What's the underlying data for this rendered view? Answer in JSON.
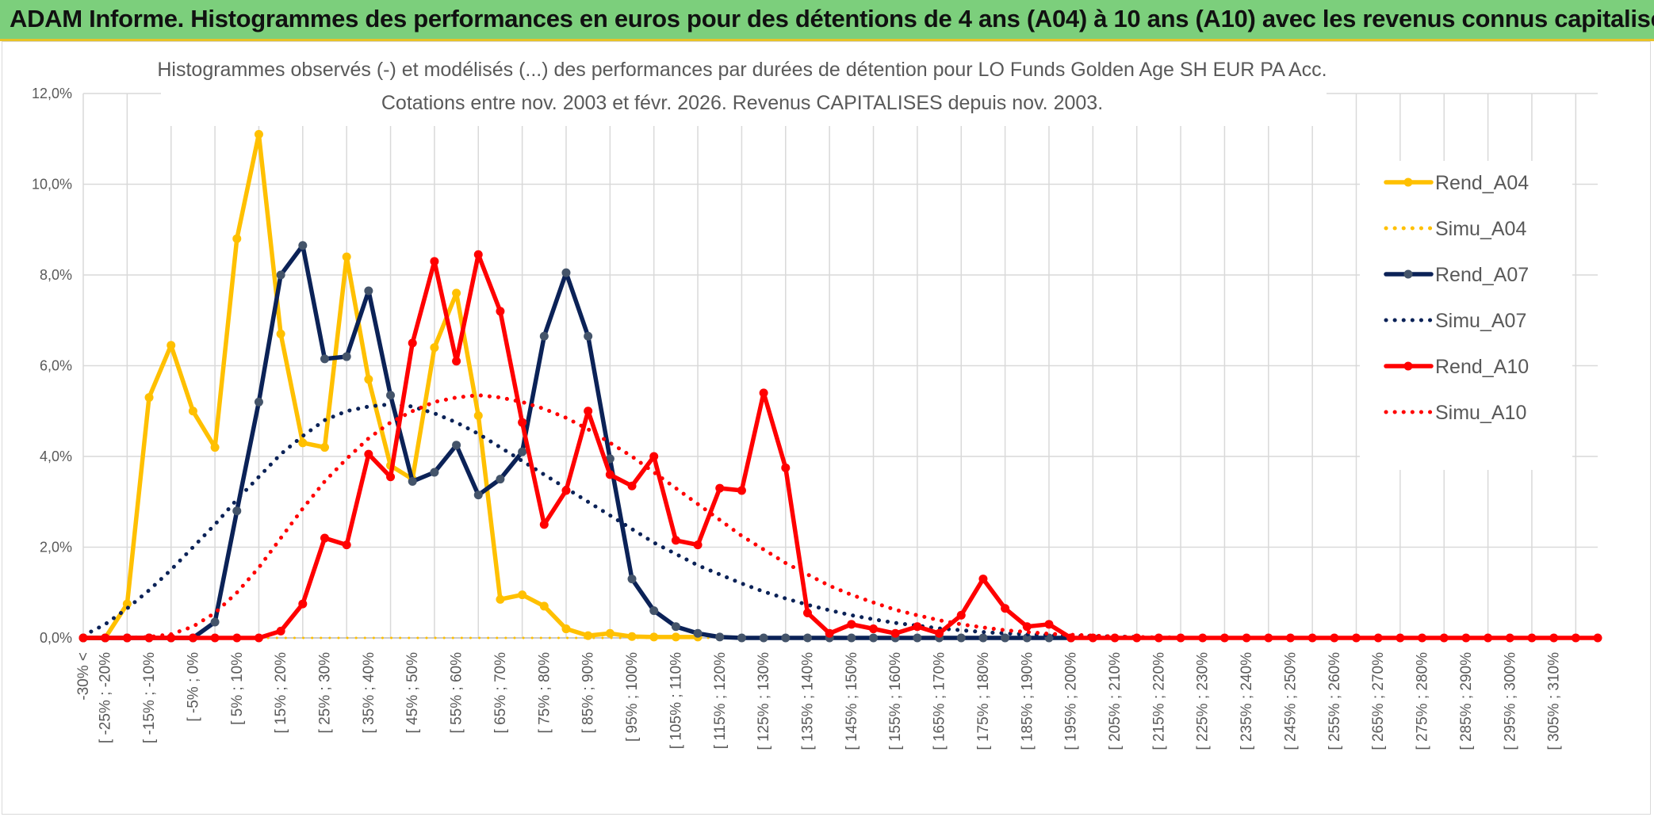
{
  "banner": {
    "title": "ADAM Informe. Histogrammes des performances en euros pour des détentions de 4 ans (A04) à 10 ans (A10) avec les revenus connus capitalisés"
  },
  "chart_data": {
    "type": "line",
    "title": "Histogrammes observés (-) et modélisés (...) des performances par durées de détention pour LO Funds Golden Age SH EUR PA Acc.",
    "subtitle": "Cotations entre nov. 2003 et févr. 2026. Revenus CAPITALISES depuis nov. 2003.",
    "xlabel": "",
    "ylabel": "",
    "ylim": [
      0,
      12
    ],
    "yticks": [
      "0,0%",
      "2,0%",
      "4,0%",
      "6,0%",
      "8,0%",
      "10,0%",
      "12,0%"
    ],
    "grid": true,
    "legend_position": "right",
    "categories": [
      "-30% <",
      "[ -25% ; -20%",
      "[ -15% ; -10%",
      "[ -5% ; 0%",
      "[ 5% ; 10%",
      "[ 15% ; 20%",
      "[ 25% ; 30%",
      "[ 35% ; 40%",
      "[ 45% ; 50%",
      "[ 55% ; 60%",
      "[ 65% ; 70%",
      "[ 75% ; 80%",
      "[ 85% ; 90%",
      "[ 95% ; 100%",
      "[ 105% ; 110%",
      "[ 115% ; 120%",
      "[ 125% ; 130%",
      "[ 135% ; 140%",
      "[ 145% ; 150%",
      "[ 155% ; 160%",
      "[ 165% ; 170%",
      "[ 175% ; 180%",
      "[ 185% ; 190%",
      "[ 195% ; 200%",
      "[ 205% ; 210%",
      "[ 215% ; 220%",
      "[ 225% ; 230%",
      "[ 235% ; 240%",
      "[ 245% ; 250%",
      "[ 255% ; 260%",
      "[ 265% ; 270%",
      "[ 275% ; 280%",
      "[ 285% ; 290%",
      "[ 295% ; 300%",
      "[ 305% ; 310%"
    ],
    "x_domain": [
      -30,
      315
    ],
    "series": [
      {
        "name": "Rend_A04",
        "style": "solid",
        "color": "#ffc000",
        "x": [
          -30,
          -25,
          -20,
          -15,
          -10,
          -5,
          0,
          5,
          10,
          15,
          20,
          25,
          30,
          35,
          40,
          45,
          50,
          55,
          60,
          65,
          70,
          75,
          80,
          85,
          90,
          95,
          100,
          105,
          110
        ],
        "values": [
          0,
          0,
          0.75,
          5.3,
          6.45,
          5.0,
          4.2,
          8.8,
          11.1,
          6.7,
          4.3,
          4.2,
          8.4,
          5.7,
          3.8,
          3.5,
          6.4,
          7.6,
          4.9,
          0.85,
          0.95,
          0.7,
          0.2,
          0.05,
          0.1,
          0.03,
          0.02,
          0.02,
          0.02
        ]
      },
      {
        "name": "Simu_A04",
        "style": "dotted",
        "color": "#ffc000",
        "x": [
          -30,
          -20,
          -10,
          0,
          10,
          20,
          30,
          40,
          50,
          60,
          70,
          80,
          90,
          100,
          110,
          120,
          130,
          140,
          150,
          160,
          170,
          180,
          190,
          200,
          210,
          220,
          230,
          240,
          250,
          260,
          270,
          280,
          290,
          300,
          310
        ],
        "values": [
          0,
          0,
          0,
          0,
          0,
          0,
          0,
          0,
          0,
          0,
          0,
          0,
          0,
          0,
          0,
          0,
          0,
          0,
          0,
          0,
          0,
          0,
          0,
          0,
          0,
          0,
          0,
          0,
          0,
          0,
          0,
          0,
          0,
          0,
          0
        ]
      },
      {
        "name": "Rend_A07",
        "style": "solid",
        "color": "#0b2257",
        "x": [
          -30,
          -25,
          -20,
          -15,
          -10,
          -5,
          0,
          5,
          10,
          15,
          20,
          25,
          30,
          35,
          40,
          45,
          50,
          55,
          60,
          65,
          70,
          75,
          80,
          85,
          90,
          95,
          100,
          105,
          110,
          115,
          120,
          125,
          130,
          135,
          140,
          145,
          150,
          155,
          160,
          165,
          170,
          175,
          180,
          185,
          190,
          195
        ],
        "values": [
          0,
          0,
          0,
          0,
          0,
          0,
          0.35,
          2.8,
          5.2,
          8.0,
          8.65,
          6.15,
          6.2,
          7.65,
          5.35,
          3.45,
          3.65,
          4.25,
          3.15,
          3.5,
          4.1,
          6.65,
          8.05,
          6.65,
          3.95,
          1.3,
          0.6,
          0.25,
          0.1,
          0.02,
          0,
          0,
          0,
          0,
          0,
          0,
          0,
          0,
          0,
          0,
          0,
          0,
          0,
          0,
          0,
          0
        ]
      },
      {
        "name": "Simu_A07",
        "style": "dotted",
        "color": "#0b2257",
        "x": [
          -30,
          -25,
          -20,
          -15,
          -10,
          -5,
          0,
          5,
          10,
          15,
          20,
          25,
          30,
          35,
          40,
          45,
          50,
          55,
          60,
          65,
          70,
          75,
          80,
          85,
          90,
          95,
          100,
          105,
          110,
          115,
          120,
          125,
          130,
          135,
          140,
          145,
          150,
          155,
          160,
          165,
          170,
          175,
          180,
          185,
          190,
          195,
          200,
          205,
          210
        ],
        "values": [
          0.05,
          0.3,
          0.65,
          1.05,
          1.5,
          2.0,
          2.5,
          3.05,
          3.55,
          4.05,
          4.45,
          4.8,
          5.0,
          5.1,
          5.15,
          5.1,
          4.95,
          4.75,
          4.5,
          4.2,
          3.9,
          3.6,
          3.3,
          3.0,
          2.7,
          2.4,
          2.1,
          1.85,
          1.6,
          1.4,
          1.2,
          1.02,
          0.87,
          0.73,
          0.61,
          0.5,
          0.41,
          0.33,
          0.27,
          0.21,
          0.17,
          0.13,
          0.1,
          0.08,
          0.06,
          0.05,
          0.04,
          0.03,
          0.02
        ]
      },
      {
        "name": "Rend_A10",
        "style": "solid",
        "color": "#ff0000",
        "x": [
          -30,
          -25,
          -20,
          -15,
          -10,
          -5,
          0,
          5,
          10,
          15,
          20,
          25,
          30,
          35,
          40,
          45,
          50,
          55,
          60,
          65,
          70,
          75,
          80,
          85,
          90,
          95,
          100,
          105,
          110,
          115,
          120,
          125,
          130,
          135,
          140,
          145,
          150,
          155,
          160,
          165,
          170,
          175,
          180,
          185,
          190,
          195,
          200,
          205,
          210,
          215,
          220,
          225,
          230,
          235,
          240,
          245,
          250,
          255,
          260,
          265,
          270,
          275,
          280,
          285,
          290,
          295,
          300,
          305,
          310,
          315
        ],
        "values": [
          0,
          0,
          0,
          0,
          0,
          0,
          0,
          0,
          0,
          0.15,
          0.75,
          2.2,
          2.05,
          4.05,
          3.55,
          6.5,
          8.3,
          6.1,
          8.45,
          7.2,
          4.75,
          2.5,
          3.25,
          5.0,
          3.6,
          3.35,
          4.0,
          2.15,
          2.05,
          3.3,
          3.25,
          5.4,
          3.75,
          0.55,
          0.1,
          0.3,
          0.2,
          0.1,
          0.25,
          0.1,
          0.5,
          1.3,
          0.65,
          0.25,
          0.3,
          0,
          0,
          0,
          0,
          0,
          0,
          0,
          0,
          0,
          0,
          0,
          0,
          0,
          0,
          0,
          0,
          0,
          0,
          0,
          0,
          0,
          0,
          0,
          0,
          0
        ]
      },
      {
        "name": "Simu_A10",
        "style": "dotted",
        "color": "#ff0000",
        "x": [
          -30,
          -25,
          -20,
          -15,
          -10,
          -5,
          0,
          5,
          10,
          15,
          20,
          25,
          30,
          35,
          40,
          45,
          50,
          55,
          60,
          65,
          70,
          75,
          80,
          85,
          90,
          95,
          100,
          105,
          110,
          115,
          120,
          125,
          130,
          135,
          140,
          145,
          150,
          155,
          160,
          165,
          170,
          175,
          180,
          185,
          190,
          195,
          200,
          205,
          210,
          215,
          220
        ],
        "values": [
          0,
          0,
          0,
          0.02,
          0.08,
          0.25,
          0.55,
          1.0,
          1.55,
          2.2,
          2.85,
          3.45,
          3.95,
          4.4,
          4.75,
          5.0,
          5.2,
          5.3,
          5.35,
          5.3,
          5.2,
          5.05,
          4.85,
          4.6,
          4.3,
          4.0,
          3.65,
          3.3,
          2.95,
          2.6,
          2.25,
          1.95,
          1.65,
          1.4,
          1.15,
          0.95,
          0.78,
          0.62,
          0.5,
          0.39,
          0.3,
          0.23,
          0.17,
          0.13,
          0.09,
          0.07,
          0.05,
          0.03,
          0.02,
          0.01,
          0.01
        ]
      }
    ]
  }
}
